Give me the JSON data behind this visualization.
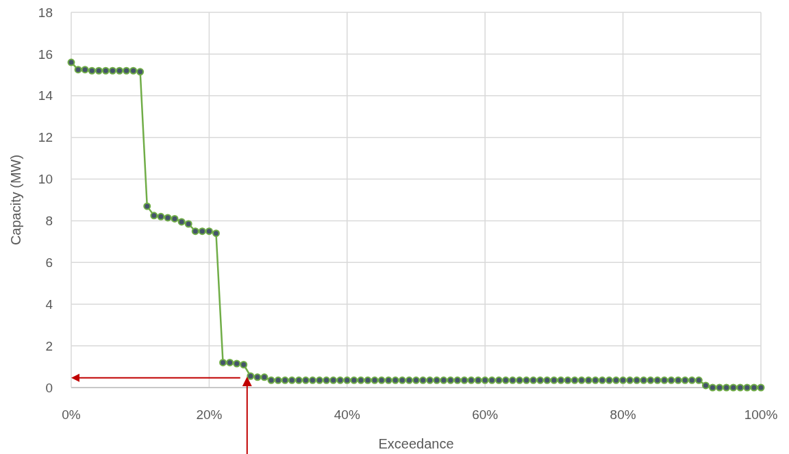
{
  "chart_data": {
    "type": "line",
    "xlabel": "Exceedance",
    "ylabel": "Capacity (MW)",
    "xlim": [
      0,
      100
    ],
    "ylim": [
      0,
      18
    ],
    "xticks": [
      {
        "value": 0,
        "label": "0%"
      },
      {
        "value": 20,
        "label": "20%"
      },
      {
        "value": 40,
        "label": "40%"
      },
      {
        "value": 60,
        "label": "60%"
      },
      {
        "value": 80,
        "label": "80%"
      },
      {
        "value": 100,
        "label": "100%"
      }
    ],
    "yticks": [
      0,
      2,
      4,
      6,
      8,
      10,
      12,
      14,
      16,
      18
    ],
    "grid": true,
    "marker": "circle",
    "line_style": "solid",
    "x": [
      0,
      1,
      2,
      3,
      4,
      5,
      6,
      7,
      8,
      9,
      10,
      11,
      12,
      13,
      14,
      15,
      16,
      17,
      18,
      19,
      20,
      21,
      22,
      23,
      24,
      25,
      26,
      27,
      28,
      29,
      30,
      31,
      32,
      33,
      34,
      35,
      36,
      37,
      38,
      39,
      40,
      41,
      42,
      43,
      44,
      45,
      46,
      47,
      48,
      49,
      50,
      51,
      52,
      53,
      54,
      55,
      56,
      57,
      58,
      59,
      60,
      61,
      62,
      63,
      64,
      65,
      66,
      67,
      68,
      69,
      70,
      71,
      72,
      73,
      74,
      75,
      76,
      77,
      78,
      79,
      80,
      81,
      82,
      83,
      84,
      85,
      86,
      87,
      88,
      89,
      90,
      91,
      92,
      93,
      94,
      95,
      96,
      97,
      98,
      99,
      100
    ],
    "series": [
      {
        "color": "#70ad47",
        "values": [
          15.6,
          15.25,
          15.25,
          15.2,
          15.2,
          15.2,
          15.2,
          15.2,
          15.2,
          15.2,
          15.15,
          8.7,
          8.25,
          8.2,
          8.15,
          8.1,
          7.95,
          7.85,
          7.5,
          7.5,
          7.5,
          7.4,
          1.2,
          1.2,
          1.15,
          1.1,
          0.55,
          0.5,
          0.5,
          0.35,
          0.35,
          0.35,
          0.35,
          0.35,
          0.35,
          0.35,
          0.35,
          0.35,
          0.35,
          0.35,
          0.35,
          0.35,
          0.35,
          0.35,
          0.35,
          0.35,
          0.35,
          0.35,
          0.35,
          0.35,
          0.35,
          0.35,
          0.35,
          0.35,
          0.35,
          0.35,
          0.35,
          0.35,
          0.35,
          0.35,
          0.35,
          0.35,
          0.35,
          0.35,
          0.35,
          0.35,
          0.35,
          0.35,
          0.35,
          0.35,
          0.35,
          0.35,
          0.35,
          0.35,
          0.35,
          0.35,
          0.35,
          0.35,
          0.35,
          0.35,
          0.35,
          0.35,
          0.35,
          0.35,
          0.35,
          0.35,
          0.35,
          0.35,
          0.35,
          0.35,
          0.35,
          0.35,
          0.1,
          0,
          0,
          0,
          0,
          0,
          0,
          0,
          0
        ]
      }
    ]
  }
}
